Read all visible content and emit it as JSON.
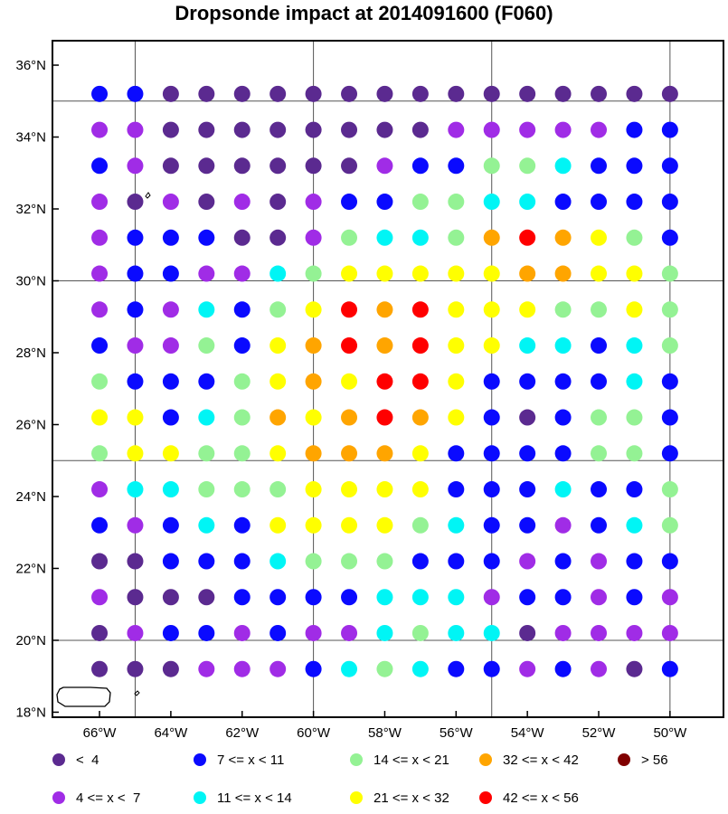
{
  "title": "Dropsonde impact at 2014091600 (F060)",
  "map": {
    "lon_ticks": [
      {
        "lon": -66,
        "label": "66°W"
      },
      {
        "lon": -64,
        "label": "64°W"
      },
      {
        "lon": -62,
        "label": "62°W"
      },
      {
        "lon": -60,
        "label": "60°W"
      },
      {
        "lon": -58,
        "label": "58°W"
      },
      {
        "lon": -56,
        "label": "56°W"
      },
      {
        "lon": -54,
        "label": "54°W"
      },
      {
        "lon": -52,
        "label": "52°W"
      },
      {
        "lon": -50,
        "label": "50°W"
      }
    ],
    "lat_ticks": [
      {
        "lat": 18,
        "label": "18°N"
      },
      {
        "lat": 20,
        "label": "20°N"
      },
      {
        "lat": 22,
        "label": "22°N"
      },
      {
        "lat": 24,
        "label": "24°N"
      },
      {
        "lat": 26,
        "label": "26°N"
      },
      {
        "lat": 28,
        "label": "28°N"
      },
      {
        "lat": 30,
        "label": "30°N"
      },
      {
        "lat": 32,
        "label": "32°N"
      },
      {
        "lat": 34,
        "label": "34°N"
      },
      {
        "lat": 36,
        "label": "36°N"
      }
    ],
    "grid_lons": [
      -65,
      -60,
      -55,
      -50
    ],
    "grid_lats": [
      20,
      25,
      30,
      35
    ],
    "point_lons": [
      -66,
      -65,
      -64,
      -63,
      -62,
      -61,
      -60,
      -59,
      -58,
      -57,
      -56,
      -55,
      -54,
      -53,
      -52,
      -51,
      -50
    ],
    "point_lats": [
      35.2,
      34.2,
      33.2,
      32.2,
      31.2,
      30.2,
      29.2,
      28.2,
      27.2,
      26.2,
      25.2,
      24.2,
      23.2,
      22.2,
      21.2,
      20.2,
      19.2
    ],
    "category_rows": [
      "BBDDDDDDDDDDDDDDD",
      "PPDDDDDDDDPPPPPBB",
      "BPDDDDDDPBBGGCBBB",
      "PDPDPDPBBGGCCBBBB",
      "PBBBDDPGCCGOROYGB",
      "PBBPPCGYYYYYOOYYG",
      "PBPCBGYRORYYYGGYG",
      "BPPGBYORORYYCCBCG",
      "GBBBGYOYRRYBBBBCB",
      "YYBCGOYOROYBDBGGB",
      "GYYGGYOOOYBBBBGGB",
      "PCCGGGYYYYBBBCBBG",
      "BPBCBYYYYGCBBPBCG",
      "DDBBBCGGGBBBPBPBB",
      "PDDDBBBBCCCPBBPBP",
      "DPBBPBPPCGCCDPPPP",
      "DDDPPPBCGCBBPBPDB"
    ],
    "colors": {
      "D": "#5b2a90",
      "P": "#a02ce6",
      "B": "#0a0aff",
      "C": "#00f5f5",
      "G": "#94f294",
      "Y": "#ffff00",
      "O": "#ffa500",
      "R": "#ff0000",
      "M": "#800000"
    }
  },
  "legend": [
    {
      "label": "<  4",
      "color": "#5b2a90"
    },
    {
      "label": "7 <= x < 11",
      "color": "#0a0aff"
    },
    {
      "label": "14 <= x < 21",
      "color": "#94f294"
    },
    {
      "label": "32 <= x < 42",
      "color": "#ffa500"
    },
    {
      "label": "> 56",
      "color": "#800000"
    },
    {
      "label": "4 <= x <  7",
      "color": "#a02ce6"
    },
    {
      "label": "11 <= x < 14",
      "color": "#00f5f5"
    },
    {
      "label": "21 <= x < 32",
      "color": "#ffff00"
    },
    {
      "label": "42 <= x < 56",
      "color": "#ff0000"
    }
  ]
}
